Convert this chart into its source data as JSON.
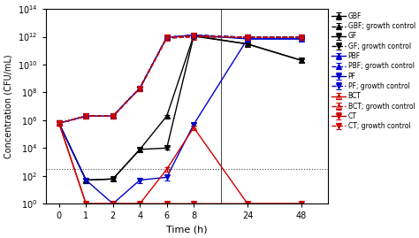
{
  "time_points": [
    0,
    1,
    2,
    4,
    6,
    8,
    24,
    48
  ],
  "series": {
    "GBF": {
      "color": "#000000",
      "linestyle": "-",
      "marker": "^",
      "markerfacecolor": "#000000",
      "values": [
        600000.0,
        50.0,
        60.0,
        8000.0,
        2000000.0,
        1200000000000.0,
        300000000000.0,
        20000000000.0
      ],
      "yerr": [
        100000.0,
        10.0,
        10.0,
        2000.0,
        500000.0,
        200000000000.0,
        50000000000.0,
        5000000000.0
      ]
    },
    "GBF_growth": {
      "color": "#000000",
      "linestyle": "--",
      "marker": "^",
      "markerfacecolor": "#000000",
      "values": [
        600000.0,
        2000000.0,
        2000000.0,
        200000000.0,
        900000000000.0,
        1300000000000.0,
        900000000000.0,
        900000000000.0
      ],
      "yerr": [
        100000.0,
        300000.0,
        300000.0,
        30000000.0,
        100000000000.0,
        200000000000.0,
        100000000000.0,
        100000000000.0
      ]
    },
    "GF": {
      "color": "#000000",
      "linestyle": "-",
      "marker": "v",
      "markerfacecolor": "#000000",
      "values": [
        600000.0,
        50.0,
        60.0,
        8000.0,
        10000.0,
        1100000000000.0,
        300000000000.0,
        20000000000.0
      ],
      "yerr": [
        100000.0,
        10.0,
        10.0,
        2000.0,
        2000.0,
        200000000000.0,
        50000000000.0,
        5000000000.0
      ]
    },
    "GF_growth": {
      "color": "#000000",
      "linestyle": "--",
      "marker": "v",
      "markerfacecolor": "#000000",
      "values": [
        600000.0,
        2000000.0,
        2000000.0,
        200000000.0,
        800000000000.0,
        1000000000000.0,
        900000000000.0,
        900000000000.0
      ],
      "yerr": [
        100000.0,
        300000.0,
        300000.0,
        30000000.0,
        100000000000.0,
        200000000000.0,
        100000000000.0,
        100000000000.0
      ]
    },
    "PBF": {
      "color": "#0000cc",
      "linestyle": "-",
      "marker": "^",
      "markerfacecolor": "#0000cc",
      "values": [
        600000.0,
        2000000.0,
        2000000.0,
        200000000.0,
        900000000000.0,
        1300000000000.0,
        700000000000.0,
        700000000000.0
      ],
      "yerr": [
        100000.0,
        300000.0,
        300000.0,
        30000000.0,
        100000000000.0,
        200000000000.0,
        100000000000.0,
        100000000000.0
      ]
    },
    "PBF_growth": {
      "color": "#0000cc",
      "linestyle": "--",
      "marker": "^",
      "markerfacecolor": "#0000cc",
      "values": [
        600000.0,
        2000000.0,
        2000000.0,
        200000000.0,
        900000000000.0,
        1300000000000.0,
        900000000000.0,
        900000000000.0
      ],
      "yerr": [
        100000.0,
        300000.0,
        300000.0,
        30000000.0,
        100000000000.0,
        200000000000.0,
        100000000000.0,
        100000000000.0
      ]
    },
    "PF": {
      "color": "#0000cc",
      "linestyle": "-",
      "marker": "v",
      "markerfacecolor": "#0000cc",
      "values": [
        600000.0,
        50.0,
        1.0,
        50.0,
        80.0,
        500000.0,
        700000000000.0,
        700000000000.0
      ],
      "yerr": [
        100000.0,
        20.0,
        0,
        20.0,
        30.0,
        100000.0,
        100000000000.0,
        100000000000.0
      ]
    },
    "PF_growth": {
      "color": "#0000cc",
      "linestyle": "--",
      "marker": "v",
      "markerfacecolor": "#0000cc",
      "values": [
        600000.0,
        2000000.0,
        2000000.0,
        200000000.0,
        900000000000.0,
        1300000000000.0,
        900000000000.0,
        900000000000.0
      ],
      "yerr": [
        100000.0,
        300000.0,
        300000.0,
        30000000.0,
        100000000000.0,
        200000000000.0,
        100000000000.0,
        100000000000.0
      ]
    },
    "BCT": {
      "color": "#cc0000",
      "linestyle": "-",
      "marker": "^",
      "markerfacecolor": "none",
      "values": [
        600000.0,
        1.0,
        1.0,
        1.0,
        300.0,
        300000.0,
        1.0,
        1.0
      ],
      "yerr": [
        100000.0,
        0,
        0,
        0,
        100.0,
        100000.0,
        0,
        0
      ]
    },
    "BCT_growth": {
      "color": "#cc0000",
      "linestyle": "--",
      "marker": "^",
      "markerfacecolor": "none",
      "values": [
        600000.0,
        2000000.0,
        2000000.0,
        200000000.0,
        800000000000.0,
        1000000000000.0,
        900000000000.0,
        900000000000.0
      ],
      "yerr": [
        100000.0,
        300000.0,
        300000.0,
        30000000.0,
        100000000000.0,
        200000000000.0,
        100000000000.0,
        100000000000.0
      ]
    },
    "CT": {
      "color": "#cc0000",
      "linestyle": "-",
      "marker": "v",
      "markerfacecolor": "#cc0000",
      "values": [
        600000.0,
        1.0,
        1.0,
        1.0,
        1.0,
        1.0,
        1.0,
        1.0
      ],
      "yerr": [
        100000.0,
        0,
        0,
        0,
        0,
        0,
        0,
        0
      ]
    },
    "CT_growth": {
      "color": "#cc0000",
      "linestyle": "--",
      "marker": "v",
      "markerfacecolor": "#cc0000",
      "values": [
        600000.0,
        2000000.0,
        2000000.0,
        200000000.0,
        900000000000.0,
        1200000000000.0,
        900000000000.0,
        900000000000.0
      ],
      "yerr": [
        100000.0,
        300000.0,
        300000.0,
        30000000.0,
        100000000000.0,
        200000000000.0,
        100000000000.0,
        100000000000.0
      ]
    }
  },
  "legend_labels": {
    "GBF": "GBF",
    "GBF_growth": "GBF; growth control",
    "GF": "GF",
    "GF_growth": "GF; growth control",
    "PBF": "PBF",
    "PBF_growth": "PBF; growth control",
    "PF": "PF",
    "PF_growth": "PF; growth control",
    "BCT": "BCT",
    "BCT_growth": "BCT; growth control",
    "CT": "CT",
    "CT_growth": "CT; growth control"
  },
  "xlabel": "Time (h)",
  "ylabel": "Concentration (CFU/mL)",
  "ylim": [
    1.0,
    100000000000000.0
  ],
  "detection_limit": 300.0,
  "background_color": "#ffffff"
}
